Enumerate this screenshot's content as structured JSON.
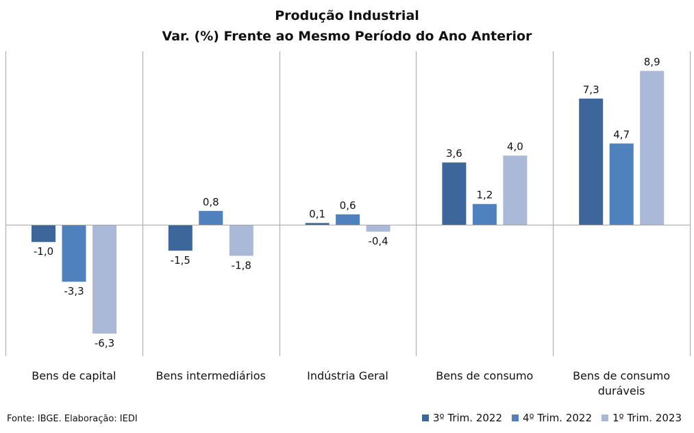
{
  "chart_data": {
    "type": "bar",
    "title": "Produção Industrial",
    "subtitle": "Var. (%)  Frente ao Mesmo Período do Ano Anterior",
    "categories": [
      [
        "Bens de capital"
      ],
      [
        "Bens intermediários"
      ],
      [
        "Indústria Geral"
      ],
      [
        "Bens de consumo"
      ],
      [
        "Bens de consumo",
        "duráveis"
      ]
    ],
    "series": [
      {
        "name": "3º Trim. 2022",
        "color": "#3c6699",
        "values": [
          -1.0,
          -1.5,
          0.1,
          3.6,
          7.3
        ],
        "labels": [
          "-1,0",
          "-1,5",
          "0,1",
          "3,6",
          "7,3"
        ]
      },
      {
        "name": "4º Trim. 2022",
        "color": "#4f81bd",
        "values": [
          -3.3,
          0.8,
          0.6,
          1.2,
          4.7
        ],
        "labels": [
          "-3,3",
          "0,8",
          "0,6",
          "1,2",
          "4,7"
        ]
      },
      {
        "name": "1º Trim. 2023",
        "color": "#aab9d7",
        "values": [
          -6.3,
          -1.8,
          -0.4,
          4.0,
          8.9
        ],
        "labels": [
          "-6,3",
          "-1,8",
          "-0,4",
          "4,0",
          "8,9"
        ]
      }
    ],
    "legend_position": "bottom-right",
    "grid": false
  },
  "source": "Fonte: IBGE. Elaboração: IEDI"
}
